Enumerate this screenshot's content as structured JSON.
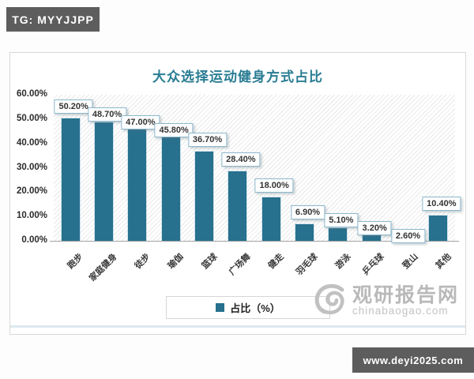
{
  "badges": {
    "tg": "TG: MYYJJPP",
    "site_url": "www.deyi2025.com"
  },
  "chart_data": {
    "type": "bar",
    "title": "大众选择运动健身方式占比",
    "categories": [
      "跑步",
      "家庭健身",
      "徒步",
      "瑜伽",
      "篮球",
      "广场舞",
      "健走",
      "羽毛球",
      "游泳",
      "乒乓球",
      "登山",
      "其他"
    ],
    "values": [
      50.2,
      48.7,
      47.0,
      45.8,
      36.7,
      28.4,
      18.0,
      6.9,
      5.1,
      3.2,
      2.6,
      10.4
    ],
    "value_labels": [
      "50.20%",
      "48.70%",
      "47.00%",
      "45.80%",
      "36.70%",
      "28.40%",
      "18.00%",
      "6.90%",
      "5.10%",
      "3.20%",
      "2.60%",
      "10.40%"
    ],
    "legend": "占比（%）",
    "legend_position": "bottom",
    "ylim": [
      0,
      60
    ],
    "yticks": [
      "60.00%",
      "50.00%",
      "40.00%",
      "30.00%",
      "20.00%",
      "10.00%",
      "0.00%"
    ],
    "bar_color": "#27708e",
    "grid": false,
    "plot_background": "diagonal-hatch"
  },
  "watermark": {
    "name": "观研报告网",
    "domain": "chinabaogao.com"
  }
}
